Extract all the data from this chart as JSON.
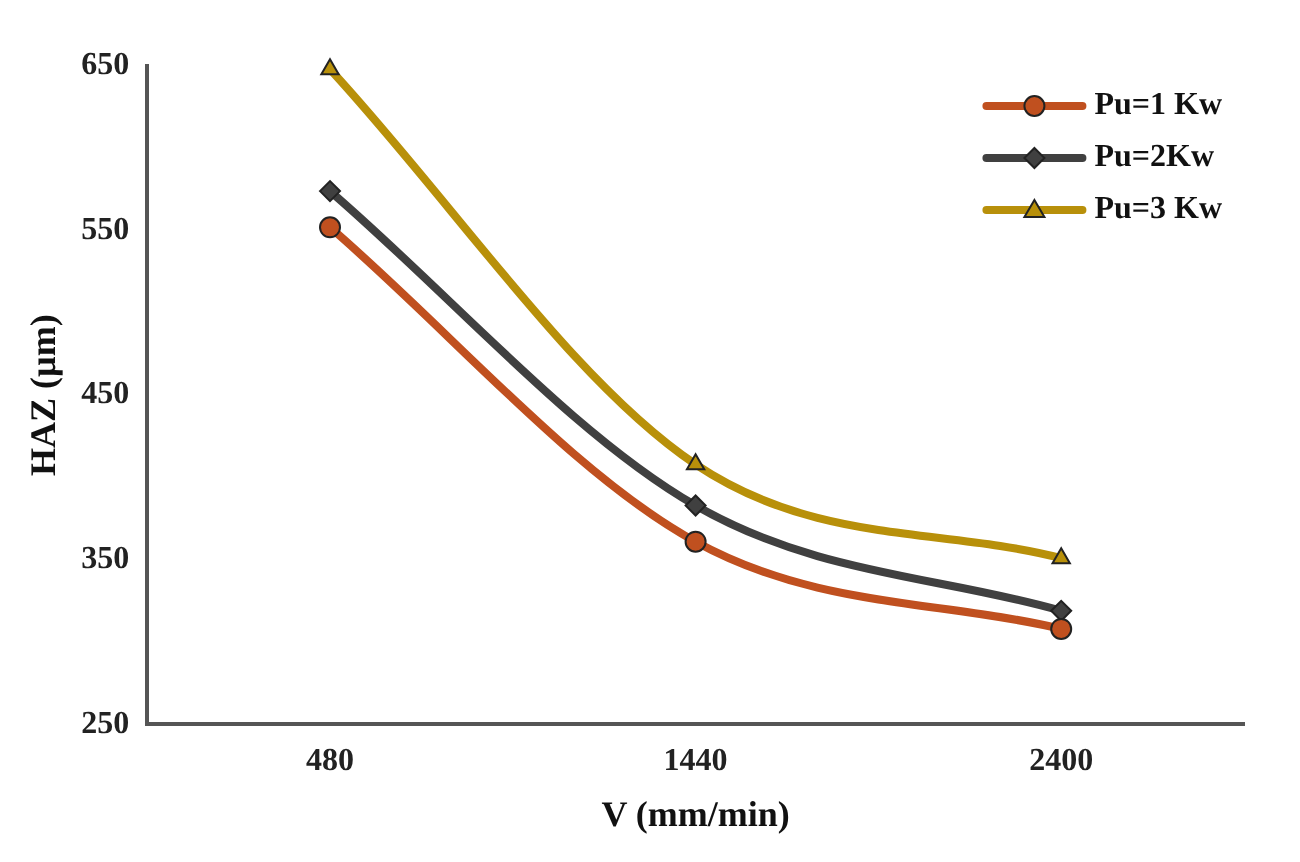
{
  "chart_data": {
    "type": "line",
    "xlabel": "V (mm/min)",
    "ylabel": "HAZ (µm)",
    "categories": [
      "480",
      "1440",
      "2400"
    ],
    "series": [
      {
        "name": "Pu=1 Kw",
        "color": "#c0501f",
        "values": [
          552,
          361,
          308
        ],
        "marker": "circle"
      },
      {
        "name": "Pu=2Kw",
        "color": "#404040",
        "values": [
          574,
          383,
          319
        ],
        "marker": "diamond"
      },
      {
        "name": "Pu=3 Kw",
        "color": "#b8900a",
        "values": [
          648,
          408,
          351
        ],
        "marker": "triangle"
      }
    ],
    "ylim": [
      250,
      650
    ],
    "yticks": [
      250,
      350,
      450,
      550,
      650
    ],
    "grid": false,
    "legend": "top right"
  }
}
